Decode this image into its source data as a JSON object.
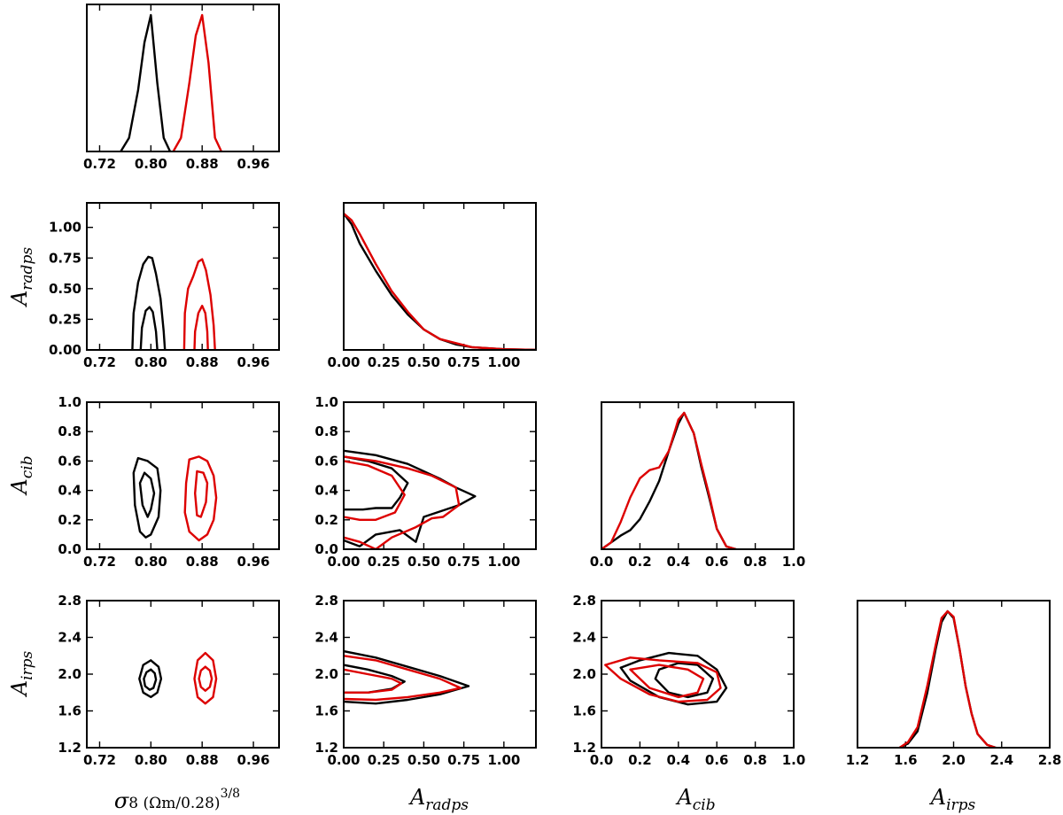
{
  "chart_data": {
    "type": "triangle_corner_plot",
    "parameters": [
      {
        "name": "sigma8",
        "label_main": "σ",
        "label_rest": "8 (Ωm/0.28)",
        "label_sup": "3/8",
        "range": [
          0.7,
          1.0
        ],
        "ticks": [
          "0.72",
          "0.80",
          "0.88",
          "0.96"
        ],
        "tick_values": [
          0.72,
          0.8,
          0.88,
          0.96
        ]
      },
      {
        "name": "A_radps",
        "label_main": "A",
        "label_sub": "radps",
        "range": [
          0.0,
          1.2
        ],
        "ticks": [
          "0.00",
          "0.25",
          "0.50",
          "0.75",
          "1.00"
        ],
        "tick_values": [
          0.0,
          0.25,
          0.5,
          0.75,
          1.0
        ]
      },
      {
        "name": "A_cib",
        "label_main": "A",
        "label_sub": "cib",
        "range": [
          0.0,
          1.0
        ],
        "ticks": [
          "0.0",
          "0.2",
          "0.4",
          "0.6",
          "0.8",
          "1.0"
        ],
        "tick_values": [
          0.0,
          0.2,
          0.4,
          0.6,
          0.8,
          1.0
        ]
      },
      {
        "name": "A_irps",
        "label_main": "A",
        "label_sub": "irps",
        "range": [
          1.2,
          2.8
        ],
        "ticks": [
          "1.2",
          "1.6",
          "2.0",
          "2.4",
          "2.8"
        ],
        "tick_values": [
          1.2,
          1.6,
          2.0,
          2.4,
          2.8
        ]
      }
    ],
    "series": [
      {
        "name": "black",
        "color": "#000000"
      },
      {
        "name": "red",
        "color": "#dd0000"
      }
    ],
    "diagonal": [
      {
        "param": 0,
        "curves": [
          {
            "series": 0,
            "x": [
              0.753,
              0.766,
              0.78,
              0.79,
              0.8,
              0.81,
              0.82,
              0.83
            ],
            "y": [
              0.0,
              0.1,
              0.45,
              0.8,
              1.0,
              0.5,
              0.1,
              0.0
            ]
          },
          {
            "series": 1,
            "x": [
              0.835,
              0.847,
              0.86,
              0.87,
              0.88,
              0.89,
              0.9,
              0.91
            ],
            "y": [
              0.0,
              0.1,
              0.5,
              0.85,
              1.0,
              0.65,
              0.1,
              0.0
            ]
          }
        ]
      },
      {
        "param": 1,
        "curves": [
          {
            "series": 0,
            "x": [
              0.0,
              0.05,
              0.1,
              0.2,
              0.3,
              0.4,
              0.5,
              0.6,
              0.7,
              0.8,
              1.0,
              1.2
            ],
            "y": [
              1.0,
              0.92,
              0.78,
              0.58,
              0.4,
              0.26,
              0.15,
              0.08,
              0.04,
              0.02,
              0.005,
              0.0
            ]
          },
          {
            "series": 1,
            "x": [
              0.0,
              0.05,
              0.1,
              0.2,
              0.3,
              0.4,
              0.5,
              0.6,
              0.7,
              0.8,
              1.0,
              1.2
            ],
            "y": [
              1.0,
              0.95,
              0.85,
              0.63,
              0.43,
              0.28,
              0.15,
              0.08,
              0.05,
              0.02,
              0.005,
              0.0
            ]
          }
        ]
      },
      {
        "param": 2,
        "curves": [
          {
            "series": 0,
            "x": [
              0.0,
              0.05,
              0.1,
              0.15,
              0.2,
              0.25,
              0.3,
              0.35,
              0.4,
              0.43,
              0.48,
              0.52,
              0.56,
              0.6,
              0.65,
              0.7
            ],
            "y": [
              0.0,
              0.05,
              0.1,
              0.14,
              0.22,
              0.35,
              0.5,
              0.72,
              0.92,
              1.0,
              0.85,
              0.6,
              0.38,
              0.15,
              0.02,
              0.0
            ]
          },
          {
            "series": 1,
            "x": [
              0.0,
              0.05,
              0.1,
              0.15,
              0.2,
              0.25,
              0.3,
              0.35,
              0.4,
              0.43,
              0.48,
              0.52,
              0.56,
              0.6,
              0.65,
              0.7
            ],
            "y": [
              0.0,
              0.05,
              0.2,
              0.38,
              0.52,
              0.58,
              0.6,
              0.72,
              0.95,
              1.0,
              0.85,
              0.62,
              0.4,
              0.15,
              0.02,
              0.0
            ]
          }
        ]
      },
      {
        "param": 3,
        "curves": [
          {
            "series": 0,
            "x": [
              1.55,
              1.62,
              1.7,
              1.78,
              1.85,
              1.9,
              1.95,
              2.0,
              2.05,
              2.1,
              2.15,
              2.2,
              2.28,
              2.35
            ],
            "y": [
              0.0,
              0.03,
              0.12,
              0.4,
              0.72,
              0.92,
              1.0,
              0.95,
              0.72,
              0.45,
              0.25,
              0.1,
              0.02,
              0.0
            ]
          },
          {
            "series": 1,
            "x": [
              1.55,
              1.62,
              1.7,
              1.78,
              1.85,
              1.9,
              1.95,
              2.0,
              2.05,
              2.1,
              2.15,
              2.2,
              2.28,
              2.35
            ],
            "y": [
              0.0,
              0.04,
              0.15,
              0.45,
              0.75,
              0.95,
              1.0,
              0.96,
              0.72,
              0.45,
              0.25,
              0.1,
              0.02,
              0.0
            ]
          }
        ]
      }
    ],
    "contours": [
      {
        "px": 0,
        "py": 1,
        "curves": [
          {
            "series": 0,
            "x": [
              0.771,
              0.773,
              0.78,
              0.788,
              0.796,
              0.802,
              0.808,
              0.815,
              0.82,
              0.822
            ],
            "y": [
              0.0,
              0.3,
              0.55,
              0.7,
              0.76,
              0.75,
              0.62,
              0.42,
              0.15,
              0.0
            ]
          },
          {
            "series": 0,
            "x": [
              0.784,
              0.786,
              0.792,
              0.798,
              0.803,
              0.808,
              0.81
            ],
            "y": [
              0.0,
              0.18,
              0.32,
              0.35,
              0.31,
              0.15,
              0.0
            ]
          },
          {
            "series": 1,
            "x": [
              0.852,
              0.853,
              0.858,
              0.866,
              0.874,
              0.88,
              0.886,
              0.893,
              0.898,
              0.9
            ],
            "y": [
              0.0,
              0.3,
              0.5,
              0.6,
              0.72,
              0.74,
              0.65,
              0.45,
              0.2,
              0.0
            ]
          },
          {
            "series": 1,
            "x": [
              0.868,
              0.869,
              0.874,
              0.88,
              0.885,
              0.888,
              0.889
            ],
            "y": [
              0.0,
              0.15,
              0.3,
              0.36,
              0.3,
              0.15,
              0.0
            ]
          }
        ]
      },
      {
        "px": 0,
        "py": 2,
        "curves": [
          {
            "series": 0,
            "x": [
              0.795,
              0.81,
              0.815,
              0.812,
              0.8,
              0.792,
              0.783,
              0.775,
              0.773,
              0.78,
              0.795
            ],
            "y": [
              0.6,
              0.55,
              0.4,
              0.22,
              0.1,
              0.08,
              0.12,
              0.3,
              0.52,
              0.62,
              0.6
            ]
          },
          {
            "series": 0,
            "x": [
              0.79,
              0.8,
              0.805,
              0.8,
              0.795,
              0.787,
              0.783,
              0.79
            ],
            "y": [
              0.52,
              0.48,
              0.38,
              0.27,
              0.22,
              0.3,
              0.45,
              0.52
            ]
          },
          {
            "series": 1,
            "x": [
              0.86,
              0.875,
              0.888,
              0.898,
              0.902,
              0.898,
              0.888,
              0.875,
              0.86,
              0.853,
              0.855,
              0.86
            ],
            "y": [
              0.61,
              0.63,
              0.6,
              0.5,
              0.35,
              0.2,
              0.1,
              0.06,
              0.12,
              0.25,
              0.45,
              0.61
            ]
          },
          {
            "series": 1,
            "x": [
              0.872,
              0.882,
              0.888,
              0.886,
              0.878,
              0.872,
              0.869,
              0.872
            ],
            "y": [
              0.53,
              0.52,
              0.45,
              0.32,
              0.22,
              0.23,
              0.38,
              0.53
            ]
          }
        ]
      },
      {
        "px": 0,
        "py": 3,
        "curves": [
          {
            "series": 0,
            "x": [
              0.8,
              0.812,
              0.816,
              0.81,
              0.8,
              0.788,
              0.782,
              0.788,
              0.8
            ],
            "y": [
              2.15,
              2.08,
              1.95,
              1.8,
              1.75,
              1.8,
              1.95,
              2.1,
              2.15
            ]
          },
          {
            "series": 0,
            "x": [
              0.8,
              0.806,
              0.808,
              0.804,
              0.798,
              0.791,
              0.789,
              0.793,
              0.8
            ],
            "y": [
              2.05,
              2.01,
              1.94,
              1.85,
              1.83,
              1.87,
              1.95,
              2.02,
              2.05
            ]
          },
          {
            "series": 1,
            "x": [
              0.885,
              0.897,
              0.902,
              0.897,
              0.885,
              0.873,
              0.868,
              0.873,
              0.885
            ],
            "y": [
              2.23,
              2.15,
              1.95,
              1.75,
              1.68,
              1.75,
              1.95,
              2.15,
              2.23
            ]
          },
          {
            "series": 1,
            "x": [
              0.885,
              0.892,
              0.895,
              0.892,
              0.885,
              0.878,
              0.875,
              0.878,
              0.885
            ],
            "y": [
              2.08,
              2.04,
              1.95,
              1.86,
              1.82,
              1.86,
              1.95,
              2.04,
              2.08
            ]
          }
        ]
      },
      {
        "px": 1,
        "py": 2,
        "curves": [
          {
            "series": 0,
            "x": [
              0.0,
              0.2,
              0.4,
              0.6,
              0.7,
              0.82,
              0.72,
              0.5,
              0.45,
              0.35,
              0.2,
              0.1,
              0.0
            ],
            "y": [
              0.67,
              0.64,
              0.58,
              0.48,
              0.42,
              0.36,
              0.3,
              0.22,
              0.05,
              0.13,
              0.1,
              0.02,
              0.06
            ]
          },
          {
            "series": 0,
            "x": [
              0.0,
              0.15,
              0.3,
              0.4,
              0.35,
              0.3,
              0.2,
              0.12,
              0.0
            ],
            "y": [
              0.63,
              0.6,
              0.55,
              0.45,
              0.35,
              0.28,
              0.28,
              0.27,
              0.27
            ]
          },
          {
            "series": 1,
            "x": [
              0.0,
              0.2,
              0.4,
              0.55,
              0.7,
              0.72,
              0.62,
              0.55,
              0.45,
              0.3,
              0.2,
              0.1,
              0.0
            ],
            "y": [
              0.63,
              0.6,
              0.55,
              0.5,
              0.42,
              0.3,
              0.22,
              0.21,
              0.15,
              0.08,
              0.0,
              0.05,
              0.08
            ]
          },
          {
            "series": 1,
            "x": [
              0.0,
              0.15,
              0.3,
              0.38,
              0.32,
              0.2,
              0.1,
              0.0
            ],
            "y": [
              0.6,
              0.57,
              0.5,
              0.37,
              0.25,
              0.2,
              0.2,
              0.22
            ]
          }
        ]
      },
      {
        "px": 1,
        "py": 3,
        "curves": [
          {
            "series": 0,
            "x": [
              0.0,
              0.2,
              0.4,
              0.6,
              0.78,
              0.6,
              0.4,
              0.2,
              0.0
            ],
            "y": [
              2.25,
              2.18,
              2.08,
              1.98,
              1.87,
              1.78,
              1.72,
              1.68,
              1.7
            ]
          },
          {
            "series": 0,
            "x": [
              0.0,
              0.15,
              0.3,
              0.38,
              0.3,
              0.15,
              0.0
            ],
            "y": [
              2.1,
              2.05,
              1.98,
              1.92,
              1.84,
              1.8,
              1.8
            ]
          },
          {
            "series": 1,
            "x": [
              0.0,
              0.2,
              0.4,
              0.6,
              0.73,
              0.6,
              0.4,
              0.2,
              0.0
            ],
            "y": [
              2.2,
              2.15,
              2.05,
              1.95,
              1.85,
              1.8,
              1.75,
              1.72,
              1.73
            ]
          },
          {
            "series": 1,
            "x": [
              0.0,
              0.15,
              0.3,
              0.36,
              0.3,
              0.15,
              0.0
            ],
            "y": [
              2.05,
              2.0,
              1.95,
              1.9,
              1.83,
              1.8,
              1.8
            ]
          }
        ]
      },
      {
        "px": 2,
        "py": 3,
        "curves": [
          {
            "series": 0,
            "x": [
              0.1,
              0.2,
              0.35,
              0.5,
              0.6,
              0.65,
              0.6,
              0.45,
              0.3,
              0.15,
              0.1
            ],
            "y": [
              2.07,
              2.15,
              2.23,
              2.2,
              2.05,
              1.85,
              1.7,
              1.67,
              1.75,
              1.93,
              2.07
            ]
          },
          {
            "series": 0,
            "x": [
              0.3,
              0.4,
              0.5,
              0.58,
              0.55,
              0.45,
              0.35,
              0.28,
              0.3
            ],
            "y": [
              2.05,
              2.12,
              2.1,
              1.95,
              1.8,
              1.75,
              1.8,
              1.95,
              2.05
            ]
          },
          {
            "series": 1,
            "x": [
              0.02,
              0.15,
              0.3,
              0.5,
              0.6,
              0.62,
              0.55,
              0.4,
              0.25,
              0.1,
              0.02
            ],
            "y": [
              2.1,
              2.18,
              2.15,
              2.12,
              2.02,
              1.85,
              1.72,
              1.7,
              1.78,
              1.95,
              2.1
            ]
          },
          {
            "series": 1,
            "x": [
              0.15,
              0.3,
              0.45,
              0.53,
              0.5,
              0.4,
              0.25,
              0.15
            ],
            "y": [
              2.05,
              2.1,
              2.05,
              1.95,
              1.8,
              1.75,
              1.85,
              2.05
            ]
          }
        ]
      }
    ]
  }
}
